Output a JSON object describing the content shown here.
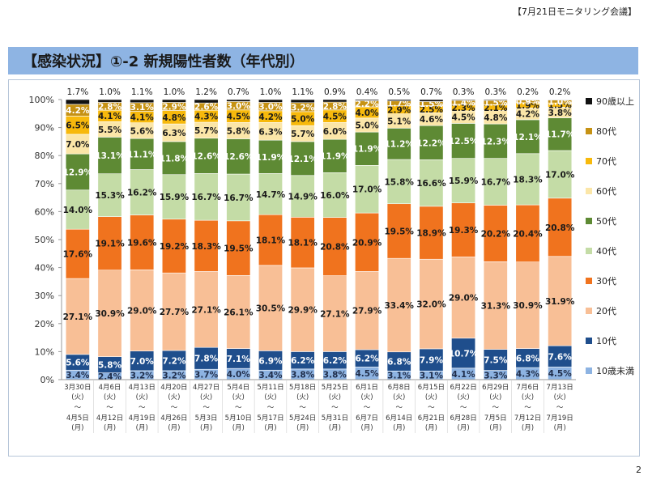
{
  "header": {
    "meeting_label": "【7月21日モニタリング会議】"
  },
  "title": "【感染状況】①-2 新規陽性者数（年代別）",
  "page_number": "2",
  "chart_data": {
    "type": "bar",
    "stacked": true,
    "y_ticks": [
      "0%",
      "10%",
      "20%",
      "30%",
      "40%",
      "50%",
      "60%",
      "70%",
      "80%",
      "90%",
      "100%"
    ],
    "ylim": [
      0,
      100
    ],
    "grid": false,
    "legend_position": "right",
    "categories": [
      {
        "start": "3月30日",
        "start_dow": "(火)",
        "tilde": "～",
        "end": "4月5日",
        "end_dow": "(月)"
      },
      {
        "start": "4月6日",
        "start_dow": "(火)",
        "tilde": "～",
        "end": "4月12日",
        "end_dow": "(月)"
      },
      {
        "start": "4月13日",
        "start_dow": "(火)",
        "tilde": "～",
        "end": "4月19日",
        "end_dow": "(月)"
      },
      {
        "start": "4月20日",
        "start_dow": "(火)",
        "tilde": "～",
        "end": "4月26日",
        "end_dow": "(月)"
      },
      {
        "start": "4月27日",
        "start_dow": "(火)",
        "tilde": "～",
        "end": "5月3日",
        "end_dow": "(月)"
      },
      {
        "start": "5月4日",
        "start_dow": "(火)",
        "tilde": "～",
        "end": "5月10日",
        "end_dow": "(月)"
      },
      {
        "start": "5月11日",
        "start_dow": "(火)",
        "tilde": "～",
        "end": "5月17日",
        "end_dow": "(月)"
      },
      {
        "start": "5月18日",
        "start_dow": "(火)",
        "tilde": "～",
        "end": "5月24日",
        "end_dow": "(月)"
      },
      {
        "start": "5月25日",
        "start_dow": "(火)",
        "tilde": "～",
        "end": "5月31日",
        "end_dow": "(月)"
      },
      {
        "start": "6月1日",
        "start_dow": "(火)",
        "tilde": "～",
        "end": "6月7日",
        "end_dow": "(月)"
      },
      {
        "start": "6月8日",
        "start_dow": "(火)",
        "tilde": "～",
        "end": "6月14日",
        "end_dow": "(月)"
      },
      {
        "start": "6月15日",
        "start_dow": "(火)",
        "tilde": "～",
        "end": "6月21日",
        "end_dow": "(月)"
      },
      {
        "start": "6月22日",
        "start_dow": "(火)",
        "tilde": "～",
        "end": "6月28日",
        "end_dow": "(月)"
      },
      {
        "start": "6月29日",
        "start_dow": "(火)",
        "tilde": "～",
        "end": "7月5日",
        "end_dow": "(月)"
      },
      {
        "start": "7月6日",
        "start_dow": "(火)",
        "tilde": "～",
        "end": "7月12日",
        "end_dow": "(月)"
      },
      {
        "start": "7月13日",
        "start_dow": "(火)",
        "tilde": "～",
        "end": "7月19日",
        "end_dow": "(月)"
      }
    ],
    "series": [
      {
        "name": "10歳未満",
        "color": "#8db3e2",
        "label_color": "#1f2d4a",
        "values": [
          3.4,
          2.4,
          3.2,
          3.2,
          3.7,
          4.0,
          3.4,
          3.8,
          3.8,
          4.5,
          3.1,
          3.1,
          4.1,
          3.3,
          4.3,
          4.5
        ],
        "labels": [
          "3.4%",
          "2.4%",
          "3.2%",
          "3.2%",
          "3.7%",
          "4.0%",
          "3.4%",
          "3.8%",
          "3.8%",
          "4.5%",
          "3.1%",
          "3.1%",
          "4.1%",
          "3.3%",
          "4.3%",
          "4.5%"
        ]
      },
      {
        "name": "10代",
        "color": "#1f4e8c",
        "label_color": "#ffffff",
        "values": [
          5.6,
          5.8,
          7.0,
          7.2,
          7.8,
          7.1,
          6.9,
          6.2,
          6.2,
          6.2,
          6.8,
          7.9,
          10.7,
          7.5,
          6.8,
          7.6
        ],
        "labels": [
          "5.6%",
          "5.8%",
          "7.0%",
          "7.2%",
          "7.8%",
          "7.1%",
          "6.9%",
          "6.2%",
          "6.2%",
          "6.2%",
          "6.8%",
          "7.9%",
          "10.7%",
          "7.5%",
          "6.8%",
          "7.6%"
        ]
      },
      {
        "name": "20代",
        "color": "#f8bf96",
        "label_color": "#1a1a1a",
        "values": [
          27.1,
          30.9,
          29.0,
          27.7,
          27.1,
          26.1,
          30.5,
          29.9,
          27.1,
          27.9,
          33.4,
          32.0,
          29.0,
          31.3,
          30.9,
          31.9
        ],
        "labels": [
          "27.1%",
          "30.9%",
          "29.0%",
          "27.7%",
          "27.1%",
          "26.1%",
          "30.5%",
          "29.9%",
          "27.1%",
          "27.9%",
          "33.4%",
          "32.0%",
          "29.0%",
          "31.3%",
          "30.9%",
          "31.9%"
        ]
      },
      {
        "name": "30代",
        "color": "#f0731e",
        "label_color": "#1a1a1a",
        "values": [
          17.6,
          19.1,
          19.6,
          19.2,
          18.3,
          19.5,
          18.1,
          18.1,
          20.8,
          20.9,
          19.5,
          18.9,
          19.3,
          20.2,
          20.4,
          20.8
        ],
        "labels": [
          "17.6%",
          "19.1%",
          "19.6%",
          "19.2%",
          "18.3%",
          "19.5%",
          "18.1%",
          "18.1%",
          "20.8%",
          "20.9%",
          "19.5%",
          "18.9%",
          "19.3%",
          "20.2%",
          "20.4%",
          "20.8%"
        ]
      },
      {
        "name": "40代",
        "color": "#c4dca6",
        "label_color": "#1a1a1a",
        "values": [
          14.0,
          15.3,
          16.2,
          15.9,
          16.7,
          16.7,
          14.7,
          14.9,
          16.0,
          17.0,
          15.8,
          16.6,
          15.9,
          16.7,
          18.3,
          17.0
        ],
        "labels": [
          "14.0%",
          "15.3%",
          "16.2%",
          "15.9%",
          "16.7%",
          "16.7%",
          "14.7%",
          "14.9%",
          "16.0%",
          "17.0%",
          "15.8%",
          "16.6%",
          "15.9%",
          "16.7%",
          "18.3%",
          "17.0%"
        ]
      },
      {
        "name": "50代",
        "color": "#5e8a34",
        "label_color": "#ffffff",
        "values": [
          12.9,
          13.1,
          11.1,
          11.8,
          12.6,
          12.6,
          11.9,
          12.1,
          11.9,
          11.9,
          11.2,
          12.2,
          12.5,
          12.3,
          12.1,
          11.7
        ],
        "labels": [
          "12.9%",
          "13.1%",
          "11.1%",
          "11.8%",
          "12.6%",
          "12.6%",
          "11.9%",
          "12.1%",
          "11.9%",
          "11.9%",
          "11.2%",
          "12.2%",
          "12.5%",
          "12.3%",
          "12.1%",
          "11.7%"
        ]
      },
      {
        "name": "60代",
        "color": "#fbe6a8",
        "label_color": "#1a1a1a",
        "values": [
          7.0,
          5.5,
          5.6,
          6.3,
          5.7,
          5.8,
          6.3,
          5.7,
          6.0,
          5.0,
          5.1,
          4.6,
          4.5,
          4.8,
          4.2,
          3.8
        ],
        "labels": [
          "7.0%",
          "5.5%",
          "5.6%",
          "6.3%",
          "5.7%",
          "5.8%",
          "6.3%",
          "5.7%",
          "6.0%",
          "5.0%",
          "5.1%",
          "4.6%",
          "4.5%",
          "4.8%",
          "4.2%",
          "3.8%"
        ]
      },
      {
        "name": "70代",
        "color": "#f7b90c",
        "label_color": "#1a1a1a",
        "values": [
          6.5,
          4.1,
          4.1,
          4.8,
          4.3,
          4.5,
          4.2,
          5.0,
          4.5,
          4.0,
          2.9,
          2.5,
          2.3,
          2.1,
          1.9,
          1.5
        ],
        "labels": [
          "6.5%",
          "4.1%",
          "4.1%",
          "4.8%",
          "4.3%",
          "4.5%",
          "4.2%",
          "5.0%",
          "4.5%",
          "4.0%",
          "2.9%",
          "2.5%",
          "2.3%",
          "2.1%",
          "1.9%",
          "1.5%"
        ]
      },
      {
        "name": "80代",
        "color": "#c69214",
        "label_color": "#ffffff",
        "values": [
          4.2,
          2.8,
          3.1,
          2.9,
          2.6,
          3.0,
          3.0,
          3.2,
          2.8,
          2.2,
          1.7,
          1.5,
          1.4,
          1.5,
          0.9,
          1.0
        ],
        "labels": [
          "4.2%",
          "2.8%",
          "3.1%",
          "2.9%",
          "2.6%",
          "3.0%",
          "3.0%",
          "3.2%",
          "2.8%",
          "2.2%",
          "1.7%",
          "1.5%",
          "1.4%",
          "1.5%",
          "0.9%",
          "1.0%"
        ]
      },
      {
        "name": "90歳以上",
        "color": "#111111",
        "label_color": "#1a1a1a",
        "values": [
          1.7,
          1.0,
          1.1,
          1.0,
          1.2,
          0.7,
          1.0,
          1.1,
          0.9,
          0.4,
          0.5,
          0.7,
          0.3,
          0.3,
          0.2,
          0.2
        ],
        "labels": [
          "1.7%",
          "1.0%",
          "1.1%",
          "1.0%",
          "1.2%",
          "0.7%",
          "1.0%",
          "1.1%",
          "0.9%",
          "0.4%",
          "0.5%",
          "0.7%",
          "0.3%",
          "0.3%",
          "0.2%",
          "0.2%"
        ]
      }
    ]
  }
}
